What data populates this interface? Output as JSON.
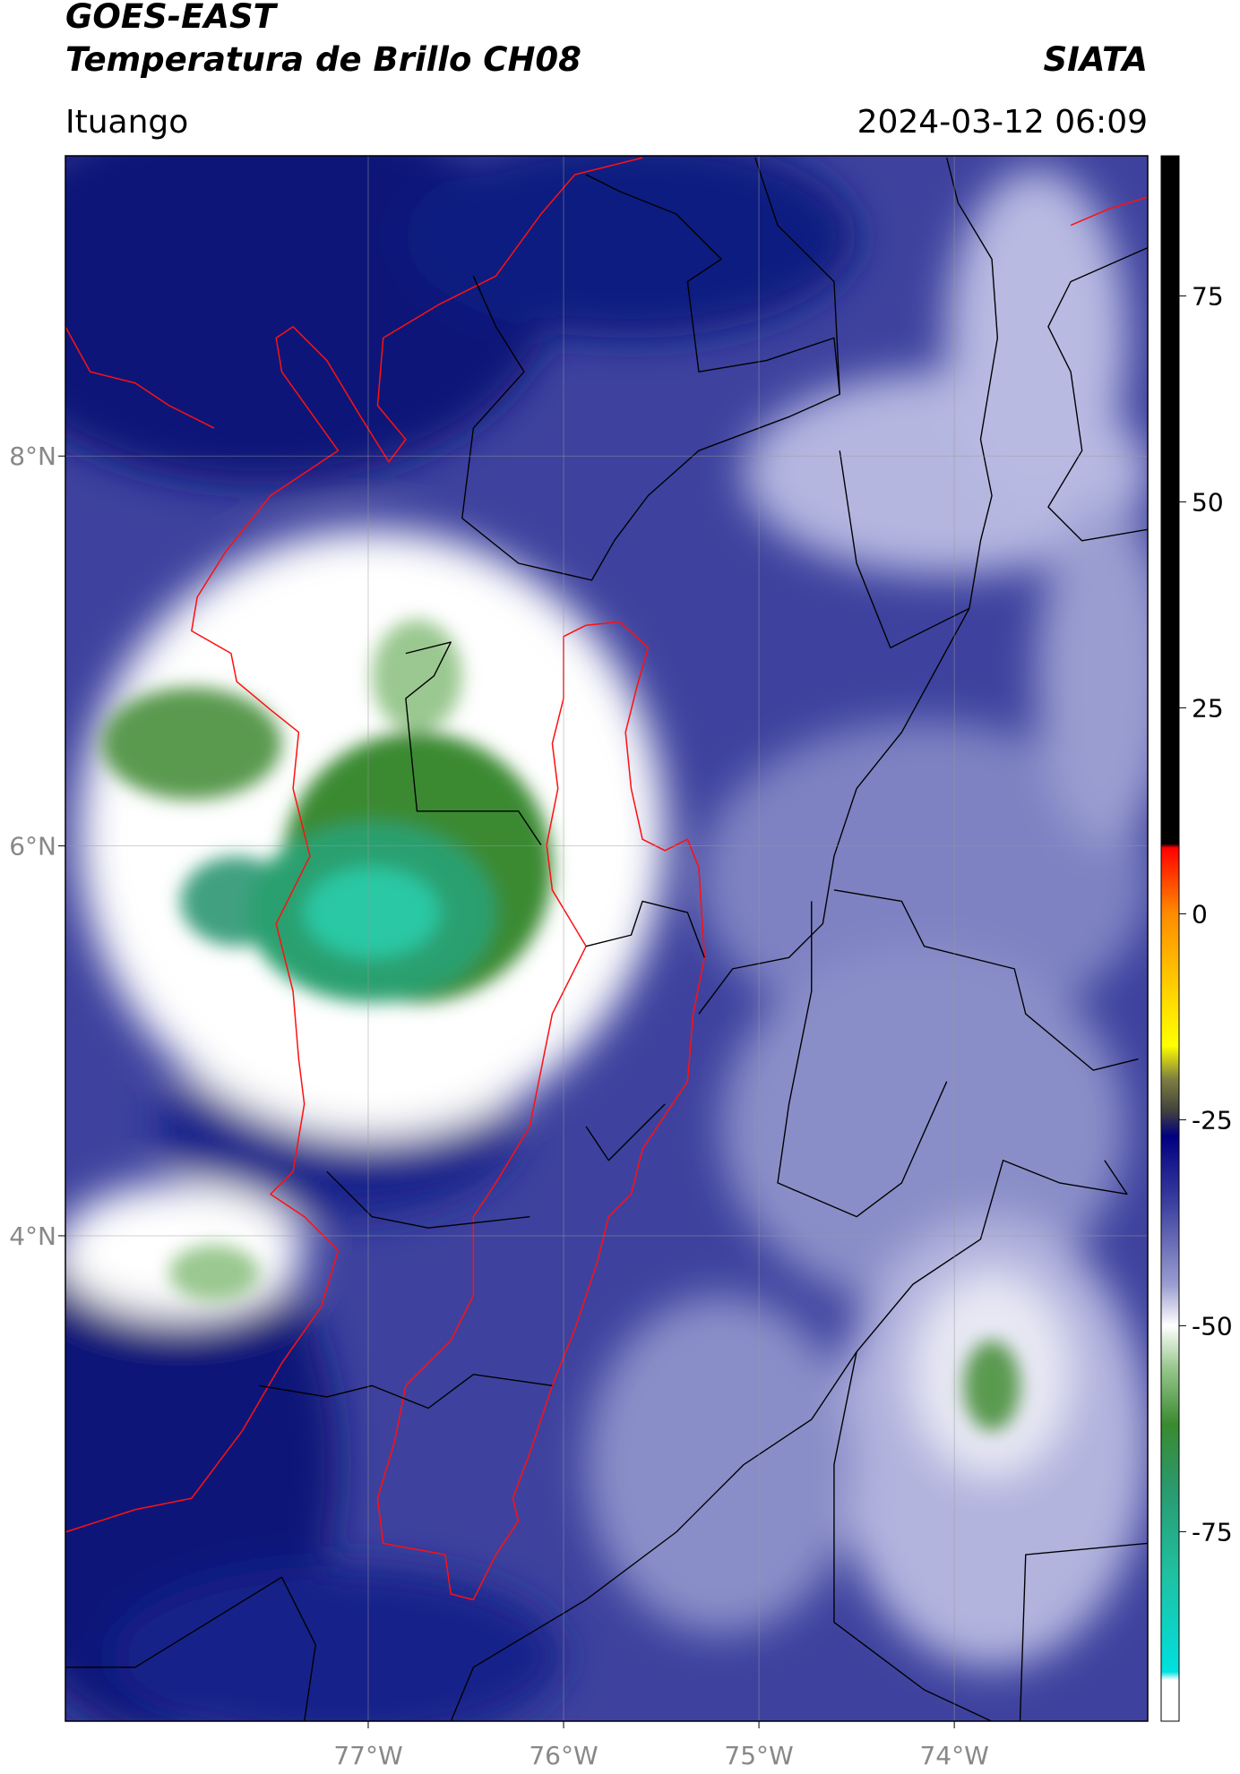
{
  "header": {
    "title": "GOES-EAST",
    "subtitle": "Temperatura de Brillo CH08",
    "brand": "SIATA",
    "location": "Ituango",
    "datetime": "2024-03-12 06:09"
  },
  "map": {
    "lonlim": [
      -78.55,
      -73.01
    ],
    "latlim": [
      1.51,
      9.54
    ],
    "lonticks": [
      {
        "value": -77,
        "label": "77°W"
      },
      {
        "value": -76,
        "label": "76°W"
      },
      {
        "value": -75,
        "label": "75°W"
      },
      {
        "value": -74,
        "label": "74°W"
      }
    ],
    "latticks": [
      {
        "value": 8,
        "label": "8°N"
      },
      {
        "value": 6,
        "label": "6°N"
      },
      {
        "value": 4,
        "label": "4°N"
      }
    ],
    "grid": true
  },
  "colorbar": {
    "clim": [
      -98,
      92
    ],
    "ticks": [
      75,
      50,
      25,
      0,
      -25,
      -50,
      -75
    ],
    "colormap": [
      {
        "value": 92,
        "color": "#000000"
      },
      {
        "value": 8.5,
        "color": "#000000"
      },
      {
        "value": 8,
        "color": "#ff0000"
      },
      {
        "value": 0,
        "color": "#ff8c00"
      },
      {
        "value": -10,
        "color": "#ffd700"
      },
      {
        "value": -16,
        "color": "#ffff00"
      },
      {
        "value": -20,
        "color": "#808040"
      },
      {
        "value": -24,
        "color": "#404040"
      },
      {
        "value": -27,
        "color": "#000080"
      },
      {
        "value": -35,
        "color": "#3a3f9f"
      },
      {
        "value": -45,
        "color": "#9a9dd0"
      },
      {
        "value": -50,
        "color": "#ffffff"
      },
      {
        "value": -55,
        "color": "#9ac890"
      },
      {
        "value": -62,
        "color": "#3a8a30"
      },
      {
        "value": -70,
        "color": "#2a9a70"
      },
      {
        "value": -80,
        "color": "#20c0a0"
      },
      {
        "value": -92,
        "color": "#00e0e0"
      },
      {
        "value": -93,
        "color": "#ffffff"
      },
      {
        "value": -98,
        "color": "#ffffff"
      }
    ]
  }
}
